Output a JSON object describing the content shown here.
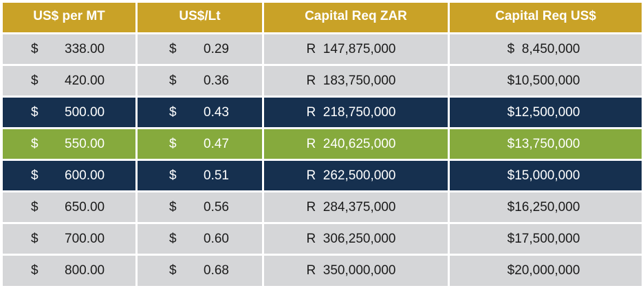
{
  "header": {
    "col1": "US$ per MT",
    "col2": "US$/Lt",
    "col3": "Capital Req ZAR",
    "col4": "Capital Req US$"
  },
  "currency_symbol": "$",
  "rows": [
    {
      "per_mt": "338.00",
      "per_lt": "0.29",
      "capital_zar": "R  147,875,000",
      "capital_usd": "$  8,450,000",
      "highlight": "none"
    },
    {
      "per_mt": "420.00",
      "per_lt": "0.36",
      "capital_zar": "R  183,750,000",
      "capital_usd": "$10,500,000",
      "highlight": "none"
    },
    {
      "per_mt": "500.00",
      "per_lt": "0.43",
      "capital_zar": "R  218,750,000",
      "capital_usd": "$12,500,000",
      "highlight": "navy"
    },
    {
      "per_mt": "550.00",
      "per_lt": "0.47",
      "capital_zar": "R  240,625,000",
      "capital_usd": "$13,750,000",
      "highlight": "green"
    },
    {
      "per_mt": "600.00",
      "per_lt": "0.51",
      "capital_zar": "R  262,500,000",
      "capital_usd": "$15,000,000",
      "highlight": "navy"
    },
    {
      "per_mt": "650.00",
      "per_lt": "0.56",
      "capital_zar": "R  284,375,000",
      "capital_usd": "$16,250,000",
      "highlight": "none"
    },
    {
      "per_mt": "700.00",
      "per_lt": "0.60",
      "capital_zar": "R  306,250,000",
      "capital_usd": "$17,500,000",
      "highlight": "none"
    },
    {
      "per_mt": "800.00",
      "per_lt": "0.68",
      "capital_zar": "R  350,000,000",
      "capital_usd": "$20,000,000",
      "highlight": "none"
    }
  ],
  "colors": {
    "header": "#c9a227",
    "row_plain": "#d5d6d8",
    "row_navy": "#16304f",
    "row_green": "#86aa3d"
  }
}
